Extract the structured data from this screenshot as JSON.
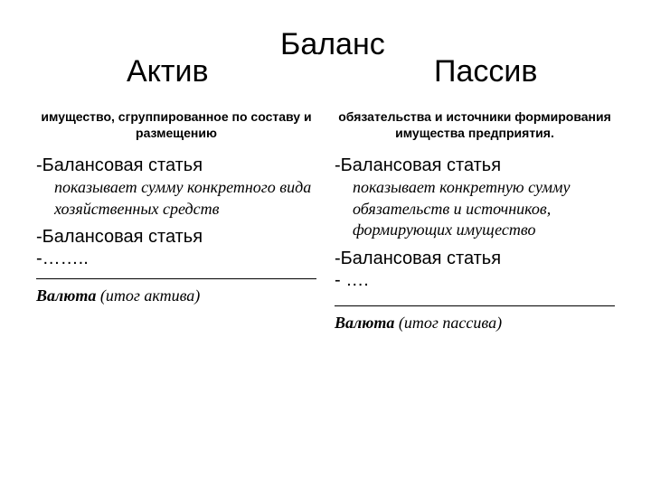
{
  "header": {
    "main": "Баланс",
    "left": "Актив",
    "right": "Пассив"
  },
  "left": {
    "subtitle": "имущество, сгруппированное по составу и  размещению",
    "item1": "-Балансовая статья",
    "desc1": "показывает сумму конкретного вида хозяйственных средств",
    "item2": "-Балансовая статья",
    "dots": "-…….. ",
    "valuta_bold": "Валюта",
    "valuta_rest": " (итог актива)"
  },
  "right": {
    "subtitle": "обязательства и источники формирования имущества предприятия.",
    "item1": "-Балансовая статья",
    "desc1": "показывает конкретную сумму обязательств и источников, формирующих имущество",
    "item2": "-Балансовая статья",
    "dots": "-    …. ",
    "valuta_bold": "Валюта",
    "valuta_rest": "   (итог пассива)"
  },
  "style": {
    "background_color": "#ffffff",
    "text_color": "#000000",
    "title_fontsize": 34,
    "subtitle_fontsize": 14,
    "item_fontsize": 20,
    "desc_fontsize": 18,
    "hr_color": "#000000"
  }
}
